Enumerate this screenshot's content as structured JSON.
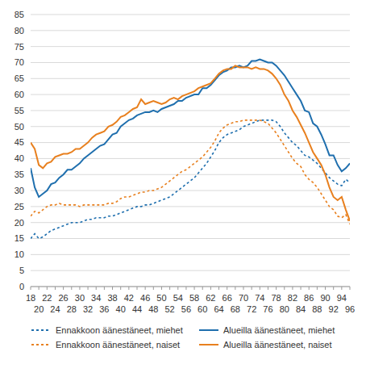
{
  "chart_data": {
    "type": "line",
    "x": [
      18,
      19,
      20,
      21,
      22,
      23,
      24,
      25,
      26,
      27,
      28,
      29,
      30,
      31,
      32,
      33,
      34,
      35,
      36,
      37,
      38,
      39,
      40,
      41,
      42,
      43,
      44,
      45,
      46,
      47,
      48,
      49,
      50,
      51,
      52,
      53,
      54,
      55,
      56,
      57,
      58,
      59,
      60,
      61,
      62,
      63,
      64,
      65,
      66,
      67,
      68,
      69,
      70,
      71,
      72,
      73,
      74,
      75,
      76,
      77,
      78,
      79,
      80,
      81,
      82,
      83,
      84,
      85,
      86,
      87,
      88,
      89,
      90,
      91,
      92,
      93,
      94,
      95,
      96
    ],
    "xlim": [
      18,
      96
    ],
    "xticks": [
      18,
      20,
      22,
      24,
      26,
      28,
      30,
      32,
      34,
      36,
      38,
      40,
      42,
      44,
      46,
      48,
      50,
      52,
      54,
      56,
      58,
      60,
      62,
      64,
      66,
      68,
      70,
      72,
      74,
      76,
      78,
      80,
      82,
      84,
      86,
      88,
      90,
      92,
      94,
      96
    ],
    "ylim": [
      0,
      85
    ],
    "yticks": [
      0,
      5,
      10,
      15,
      20,
      25,
      30,
      35,
      40,
      45,
      50,
      55,
      60,
      65,
      70,
      75,
      80,
      85
    ],
    "grid": true,
    "legend": "bottom",
    "series": [
      {
        "name": "Ennakkoon äänestäneet, miehet",
        "color": "#1f6fae",
        "line_style": "dotted",
        "values": [
          15,
          16.5,
          15,
          15.5,
          16.5,
          17.5,
          18,
          18.5,
          19,
          19.5,
          20,
          20,
          20,
          20.5,
          21,
          21,
          21.5,
          21.5,
          21.5,
          22,
          22,
          22.5,
          23,
          23.5,
          24,
          24.5,
          25,
          25,
          25.5,
          25.5,
          26,
          26.5,
          27,
          27.5,
          28,
          29,
          30,
          31,
          32,
          33,
          34,
          35.5,
          37,
          38.5,
          40.5,
          42.5,
          45,
          46.5,
          47.5,
          48,
          48.5,
          49,
          50,
          50.5,
          51,
          51.5,
          52,
          52,
          52,
          52,
          51.5,
          50,
          48,
          46.5,
          45,
          44,
          42.5,
          41,
          40.5,
          39.5,
          38.5,
          37,
          35.5,
          34,
          33,
          32,
          31.5,
          33.5,
          32.5
        ]
      },
      {
        "name": "Alueilla äänestäneet, miehet",
        "color": "#1f6fae",
        "line_style": "solid",
        "values": [
          37,
          31,
          28,
          29,
          30,
          32,
          32.5,
          34,
          35,
          36.5,
          36.5,
          37.5,
          38.5,
          40,
          41,
          42,
          43,
          44,
          44.5,
          46,
          47.5,
          48,
          50,
          51,
          52,
          52.5,
          53.5,
          54,
          54.5,
          54.5,
          55,
          54.5,
          55.5,
          56,
          56.5,
          57,
          58,
          58,
          59,
          59.5,
          60,
          60,
          62,
          62,
          63,
          64.5,
          66,
          67,
          67.5,
          68.5,
          68.5,
          69,
          68.5,
          69,
          70.5,
          70.5,
          71,
          70.5,
          70,
          70,
          69,
          67.5,
          66,
          64,
          62,
          60,
          58,
          55,
          54.5,
          51,
          50,
          47.5,
          44.5,
          41,
          41,
          38,
          36,
          37,
          38.5
        ]
      },
      {
        "name": "Ennakkoon äänestäneet, naiset",
        "color": "#e8801f",
        "line_style": "dotted",
        "values": [
          22,
          23.5,
          23,
          24,
          25,
          25.5,
          25.5,
          26,
          25.5,
          25.5,
          25.5,
          25.5,
          25,
          25.5,
          25.5,
          25.5,
          25.5,
          25.5,
          25.5,
          26,
          26,
          26.5,
          27.5,
          28,
          28,
          28.5,
          29,
          29.5,
          29.5,
          30,
          30,
          30.5,
          31,
          32,
          33,
          34,
          35,
          36,
          36.5,
          37.5,
          38.5,
          39.5,
          40.5,
          42,
          43.5,
          45.5,
          48,
          49.5,
          50.5,
          51,
          51.5,
          51.5,
          52,
          52,
          52,
          52,
          52,
          51.5,
          51,
          49.5,
          48,
          46,
          44,
          42,
          40,
          38.5,
          37.5,
          35,
          33.5,
          32.5,
          31,
          29,
          27,
          25,
          24,
          22,
          21.5,
          22.5,
          19.5
        ]
      },
      {
        "name": "Alueilla äänestäneet, naiset",
        "color": "#e8801f",
        "line_style": "solid",
        "values": [
          45,
          43,
          38,
          37,
          38.5,
          39,
          40.5,
          41,
          41.5,
          41.5,
          42,
          43,
          43,
          44,
          45,
          46.5,
          47.5,
          48,
          48.5,
          50,
          50.5,
          51.5,
          53,
          53.5,
          54.5,
          55.5,
          56,
          58.5,
          57,
          57.5,
          58,
          57.5,
          57,
          57.5,
          58.5,
          59,
          58.5,
          59.5,
          60,
          60.5,
          61,
          62,
          62.5,
          63,
          63.5,
          65,
          66.5,
          67.5,
          68,
          68,
          69,
          68.5,
          68.5,
          68.5,
          68,
          68.5,
          68,
          68,
          67.5,
          66.5,
          65,
          63,
          60,
          58,
          55,
          53,
          50.5,
          48,
          45,
          42,
          40,
          38,
          35,
          31,
          28,
          27,
          28,
          24,
          20.5
        ]
      }
    ]
  }
}
